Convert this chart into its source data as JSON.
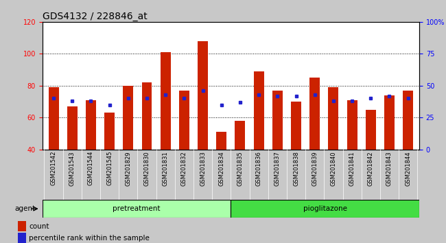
{
  "title": "GDS4132 / 228846_at",
  "categories": [
    "GSM201542",
    "GSM201543",
    "GSM201544",
    "GSM201545",
    "GSM201829",
    "GSM201830",
    "GSM201831",
    "GSM201832",
    "GSM201833",
    "GSM201834",
    "GSM201835",
    "GSM201836",
    "GSM201837",
    "GSM201838",
    "GSM201839",
    "GSM201840",
    "GSM201841",
    "GSM201842",
    "GSM201843",
    "GSM201844"
  ],
  "bar_heights": [
    79,
    67,
    71,
    63,
    80,
    82,
    101,
    77,
    108,
    51,
    58,
    89,
    77,
    70,
    85,
    79,
    71,
    65,
    74,
    77
  ],
  "percentile_ranks": [
    40,
    38,
    38,
    35,
    40,
    40,
    43,
    40,
    46,
    35,
    37,
    43,
    42,
    42,
    43,
    38,
    38,
    40,
    42,
    40
  ],
  "bar_bottom": 40,
  "ylim_left": [
    40,
    120
  ],
  "ylim_right": [
    0,
    100
  ],
  "yticks_left": [
    40,
    60,
    80,
    100,
    120
  ],
  "yticks_right": [
    0,
    25,
    50,
    75,
    100
  ],
  "ytick_labels_right": [
    "0",
    "25",
    "50",
    "75",
    "100%"
  ],
  "bar_color": "#cc2200",
  "dot_color": "#2222cc",
  "pretreatment_label": "pretreatment",
  "pioglitazone_label": "pioglitazone",
  "agent_label": "agent",
  "pretreatment_count": 10,
  "pioglitazone_count": 10,
  "legend_count_label": "count",
  "legend_pct_label": "percentile rank within the sample",
  "title_fontsize": 10,
  "tick_fontsize": 7,
  "xtick_fontsize": 6,
  "bg_plot": "#ffffff",
  "bg_figure": "#c8c8c8",
  "bg_xtick": "#c8c8c8",
  "pretreatment_color": "#aaffaa",
  "pioglitazone_color": "#44dd44",
  "agent_band_bg": "#c8c8c8"
}
